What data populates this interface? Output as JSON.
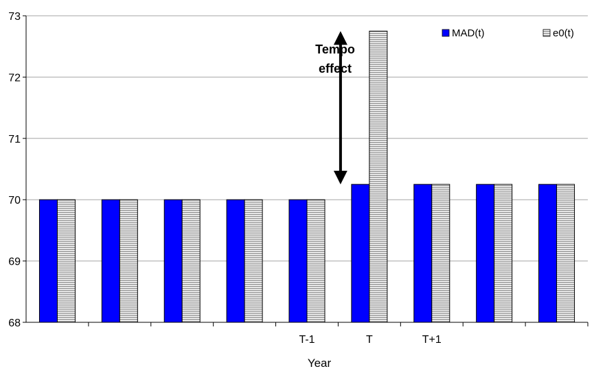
{
  "chart_data": {
    "type": "bar",
    "title": "",
    "xlabel": "Year",
    "ylabel": "",
    "ylim": [
      68,
      73
    ],
    "yticks": [
      68,
      69,
      70,
      71,
      72,
      73
    ],
    "grid": true,
    "legend_position": "top-right",
    "categories": [
      "",
      "",
      "",
      "",
      "T-1",
      "T",
      "T+1",
      "",
      ""
    ],
    "series": [
      {
        "name": "MAD(t)",
        "values": [
          70,
          70,
          70,
          70,
          70,
          70.25,
          70.25,
          70.25,
          70.25
        ],
        "color": "#0000ff",
        "pattern": "solid"
      },
      {
        "name": "e0(t)",
        "values": [
          70,
          70,
          70,
          70,
          70,
          72.75,
          70.25,
          70.25,
          70.25
        ],
        "color": "#c0c0c0",
        "pattern": "horizontal-stripes"
      }
    ],
    "annotation": {
      "text_lines": [
        "Tempo",
        "effect"
      ],
      "arrow_category": "T",
      "arrow_from": 70.25,
      "arrow_to": 72.75
    }
  }
}
